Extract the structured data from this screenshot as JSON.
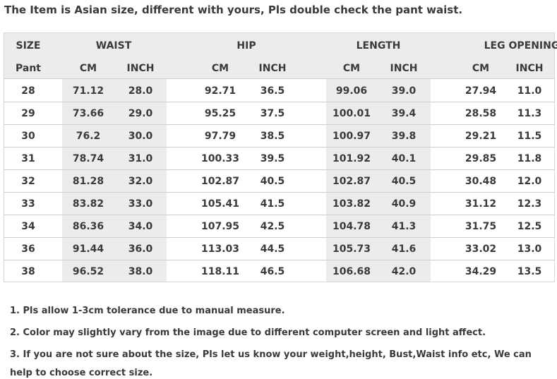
{
  "headline": "The Item is Asian size, different with yours, Pls double check the pant waist.",
  "table": {
    "group_headers": [
      "SIZE",
      "WAIST",
      "HIP",
      "LENGTH",
      "LEG OPENING"
    ],
    "sub_headers": [
      "Pant",
      "CM",
      "INCH",
      "CM",
      "INCH",
      "CM",
      "INCH",
      "CM",
      "INCH"
    ],
    "rows": [
      [
        "28",
        "71.12",
        "28.0",
        "92.71",
        "36.5",
        "99.06",
        "39.0",
        "27.94",
        "11.0"
      ],
      [
        "29",
        "73.66",
        "29.0",
        "95.25",
        "37.5",
        "100.01",
        "39.4",
        "28.58",
        "11.3"
      ],
      [
        "30",
        "76.2",
        "30.0",
        "97.79",
        "38.5",
        "100.97",
        "39.8",
        "29.21",
        "11.5"
      ],
      [
        "31",
        "78.74",
        "31.0",
        "100.33",
        "39.5",
        "101.92",
        "40.1",
        "29.85",
        "11.8"
      ],
      [
        "32",
        "81.28",
        "32.0",
        "102.87",
        "40.5",
        "102.87",
        "40.5",
        "30.48",
        "12.0"
      ],
      [
        "33",
        "83.82",
        "33.0",
        "105.41",
        "41.5",
        "103.82",
        "40.9",
        "31.12",
        "12.3"
      ],
      [
        "34",
        "86.36",
        "34.0",
        "107.95",
        "42.5",
        "104.78",
        "41.3",
        "31.75",
        "12.5"
      ],
      [
        "36",
        "91.44",
        "36.0",
        "113.03",
        "44.5",
        "105.73",
        "41.6",
        "33.02",
        "13.0"
      ],
      [
        "38",
        "96.52",
        "38.0",
        "118.11",
        "46.5",
        "106.68",
        "42.0",
        "34.29",
        "13.5"
      ]
    ]
  },
  "notes": [
    "1.  Pls allow 1-3cm tolerance due to manual measure.",
    "2.  Color may slightly vary from the image due to different computer screen and light affect.",
    "3.  If you are not sure about the size, Pls let us know your weight,height, Bust,Waist info etc, We can help to choose correct size."
  ]
}
